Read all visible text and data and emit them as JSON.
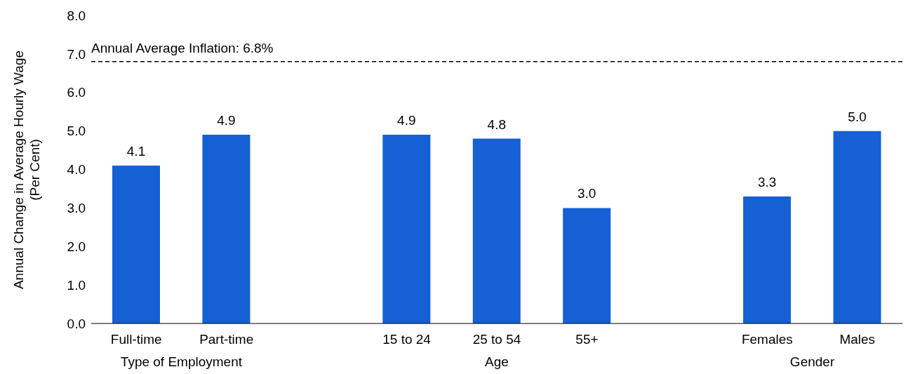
{
  "chart_data": {
    "type": "bar",
    "categories": [
      "Full-time",
      "Part-time",
      null,
      "15 to 24",
      "25 to 54",
      "55+",
      null,
      "Females",
      "Males"
    ],
    "values": [
      4.1,
      4.9,
      null,
      4.9,
      4.8,
      3.0,
      null,
      3.3,
      5.0
    ],
    "value_labels": [
      "4.1",
      "4.9",
      null,
      "4.9",
      "4.8",
      "3.0",
      null,
      "3.3",
      "5.0"
    ],
    "color": "#1560d4",
    "ylabel": "Annual Change in Average Hourly Wage\n(Per Cent)",
    "ylim": [
      0,
      8
    ],
    "yticks": [
      {
        "value": 0,
        "label": "0.0"
      },
      {
        "value": 1,
        "label": "1.0"
      },
      {
        "value": 2,
        "label": "2.0"
      },
      {
        "value": 3,
        "label": "3.0"
      },
      {
        "value": 4,
        "label": "4.0"
      },
      {
        "value": 5,
        "label": "5.0"
      },
      {
        "value": 6,
        "label": "6.0"
      },
      {
        "value": 7,
        "label": "7.0"
      },
      {
        "value": 8,
        "label": "8.0"
      }
    ],
    "annotations": [
      "Type of Employment",
      "Age",
      "Gender"
    ],
    "ref_lines": [
      {
        "axis": "y",
        "value": 6.8,
        "label": "Annual Average Inflation: 6.8%",
        "color": "#000000",
        "line_style": "dashed"
      }
    ],
    "grid": false,
    "legend": false
  }
}
